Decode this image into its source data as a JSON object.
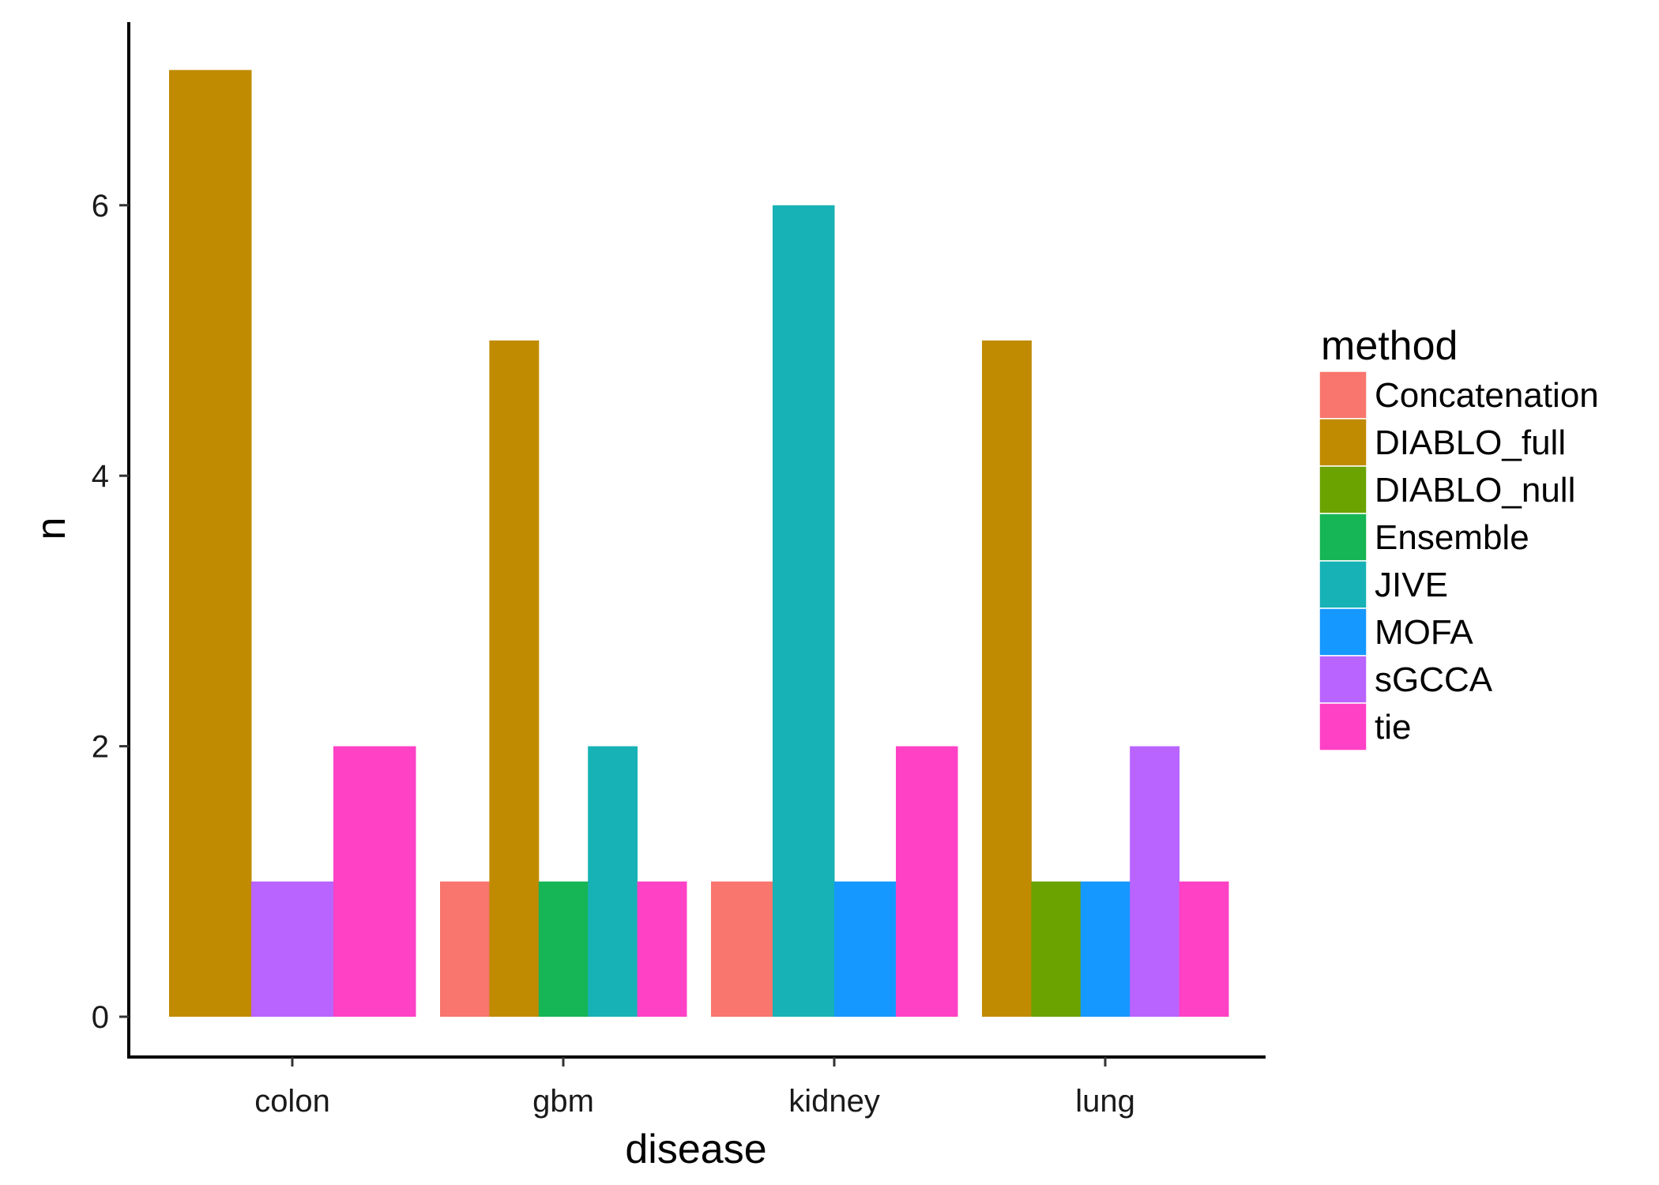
{
  "chart_data": {
    "type": "bar",
    "xlabel": "disease",
    "ylabel": "n",
    "ylim": [
      0,
      7
    ],
    "yticks": [
      0,
      2,
      4,
      6
    ],
    "categories": [
      "colon",
      "gbm",
      "kidney",
      "lung"
    ],
    "legend": {
      "title": "method",
      "placement": "right"
    },
    "series": [
      {
        "name": "Concatenation",
        "color": "#F8766D"
      },
      {
        "name": "DIABLO_full",
        "color": "#C08B00"
      },
      {
        "name": "DIABLO_null",
        "color": "#6BA300"
      },
      {
        "name": "Ensemble",
        "color": "#16B555"
      },
      {
        "name": "JIVE",
        "color": "#17B2B6"
      },
      {
        "name": "MOFA",
        "color": "#1598FF"
      },
      {
        "name": "sGCCA",
        "color": "#B964FF"
      },
      {
        "name": "tie",
        "color": "#FF41C6"
      }
    ],
    "groups": [
      {
        "category": "colon",
        "bars": [
          {
            "method": "DIABLO_full",
            "value": 7
          },
          {
            "method": "sGCCA",
            "value": 1
          },
          {
            "method": "tie",
            "value": 2
          }
        ]
      },
      {
        "category": "gbm",
        "bars": [
          {
            "method": "Concatenation",
            "value": 1
          },
          {
            "method": "DIABLO_full",
            "value": 5
          },
          {
            "method": "Ensemble",
            "value": 1
          },
          {
            "method": "JIVE",
            "value": 2
          },
          {
            "method": "tie",
            "value": 1
          }
        ]
      },
      {
        "category": "kidney",
        "bars": [
          {
            "method": "Concatenation",
            "value": 1
          },
          {
            "method": "JIVE",
            "value": 6
          },
          {
            "method": "MOFA",
            "value": 1
          },
          {
            "method": "tie",
            "value": 2
          }
        ]
      },
      {
        "category": "lung",
        "bars": [
          {
            "method": "DIABLO_full",
            "value": 5
          },
          {
            "method": "DIABLO_null",
            "value": 1
          },
          {
            "method": "MOFA",
            "value": 1
          },
          {
            "method": "sGCCA",
            "value": 2
          },
          {
            "method": "tie",
            "value": 1
          }
        ]
      }
    ]
  }
}
